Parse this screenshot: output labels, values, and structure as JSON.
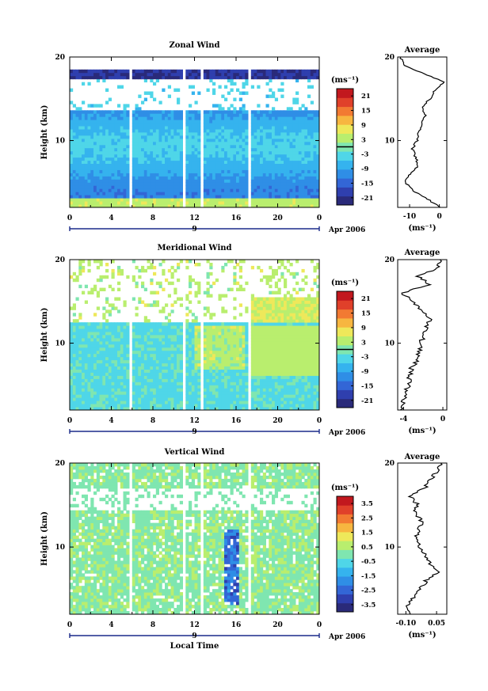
{
  "chart_data": [
    {
      "type": "heatmap",
      "title": "Zonal Wind",
      "xlabel": "",
      "ylabel": "Height (km)",
      "x_ticks": [
        "0",
        "4",
        "8",
        "12",
        "16",
        "20",
        "0"
      ],
      "y_ticks": [
        "10",
        "20"
      ],
      "xlim": [
        0,
        24
      ],
      "ylim": [
        2,
        20
      ],
      "date_label": "9",
      "date_suffix": "Apr 2006",
      "colorbar": {
        "unit": "(ms⁻¹)",
        "ticks": [
          "21",
          "15",
          "9",
          "3",
          "-3",
          "-9",
          "-15",
          "-21"
        ],
        "range": [
          -24,
          24
        ],
        "zero_line": true
      },
      "data_gaps_hours": [
        5.8,
        10.9,
        12.8,
        17.4
      ],
      "profile": {
        "title": "Average",
        "xlabel": "(ms⁻¹)",
        "x_ticks": [
          "-10",
          "0"
        ],
        "xlim": [
          -14,
          2.5
        ],
        "y_ticks": [
          "10",
          "20"
        ],
        "heights_km": [
          2,
          3,
          4,
          5,
          6,
          7,
          8,
          9,
          10,
          11,
          12,
          13,
          14,
          15,
          16,
          17,
          18,
          19,
          20
        ],
        "values": [
          0.5,
          -4,
          -9,
          -11.5,
          -10,
          -7,
          -8,
          -9,
          -7.5,
          -7,
          -6,
          -4.5,
          -6,
          -3,
          -1.5,
          1.5,
          -5,
          -12,
          -13
        ]
      }
    },
    {
      "type": "heatmap",
      "title": "Meridional Wind",
      "xlabel": "",
      "ylabel": "Height (km)",
      "x_ticks": [
        "0",
        "4",
        "8",
        "12",
        "16",
        "20",
        "0"
      ],
      "y_ticks": [
        "10",
        "20"
      ],
      "xlim": [
        0,
        24
      ],
      "ylim": [
        2,
        20
      ],
      "date_label": "9",
      "date_suffix": "Apr 2006",
      "colorbar": {
        "unit": "(ms⁻¹)",
        "ticks": [
          "21",
          "15",
          "9",
          "3",
          "-3",
          "-9",
          "-15",
          "-21"
        ],
        "range": [
          -24,
          24
        ],
        "zero_line": true
      },
      "data_gaps_hours": [
        5.8,
        10.9,
        12.8,
        17.4
      ],
      "profile": {
        "title": "Average",
        "xlabel": "(ms⁻¹)",
        "x_ticks": [
          "-4",
          "0"
        ],
        "xlim": [
          -4.6,
          0.4
        ],
        "y_ticks": [
          "10",
          "20"
        ],
        "heights_km": [
          2,
          3,
          4,
          5,
          6,
          7,
          8,
          9,
          10,
          11,
          12,
          13,
          14,
          15,
          16,
          17,
          18,
          19,
          20
        ],
        "values": [
          -4.1,
          -4,
          -3.8,
          -3.5,
          -3.4,
          -3.2,
          -2.6,
          -2.4,
          -2.2,
          -2.0,
          -1.6,
          -1.2,
          -2.4,
          -3.0,
          -4.2,
          -1.4,
          -2.5,
          -0.6,
          -0.3
        ]
      }
    },
    {
      "type": "heatmap",
      "title": "Vertical Wind",
      "xlabel": "Local Time",
      "ylabel": "Height (km)",
      "x_ticks": [
        "0",
        "4",
        "8",
        "12",
        "16",
        "20",
        "0"
      ],
      "y_ticks": [
        "10",
        "20"
      ],
      "xlim": [
        0,
        24
      ],
      "ylim": [
        2,
        20
      ],
      "date_label": "9",
      "date_suffix": "Apr 2006",
      "colorbar": {
        "unit": "(ms⁻¹)",
        "ticks": [
          "3.5",
          "2.5",
          "1.5",
          "0.5",
          "-0.5",
          "-1.5",
          "-2.5",
          "-3.5"
        ],
        "range": [
          -4,
          4
        ],
        "zero_line": false
      },
      "data_gaps_hours": [
        5.8,
        10.9,
        12.8,
        17.4
      ],
      "profile": {
        "title": "Average",
        "xlabel": "(ms⁻¹)",
        "x_ticks": [
          "-0.10",
          "0.05"
        ],
        "xlim": [
          -0.14,
          0.1
        ],
        "y_ticks": [
          "10",
          "20"
        ],
        "heights_km": [
          2,
          3,
          4,
          5,
          6,
          7,
          8,
          9,
          10,
          11,
          12,
          13,
          14,
          15,
          16,
          17,
          18,
          19,
          20
        ],
        "values": [
          -0.08,
          -0.1,
          -0.06,
          -0.03,
          0.0,
          0.06,
          0.02,
          0.0,
          -0.03,
          -0.05,
          -0.04,
          -0.02,
          -0.06,
          -0.04,
          -0.08,
          -0.01,
          0.02,
          0.05,
          0.07
        ]
      }
    }
  ]
}
